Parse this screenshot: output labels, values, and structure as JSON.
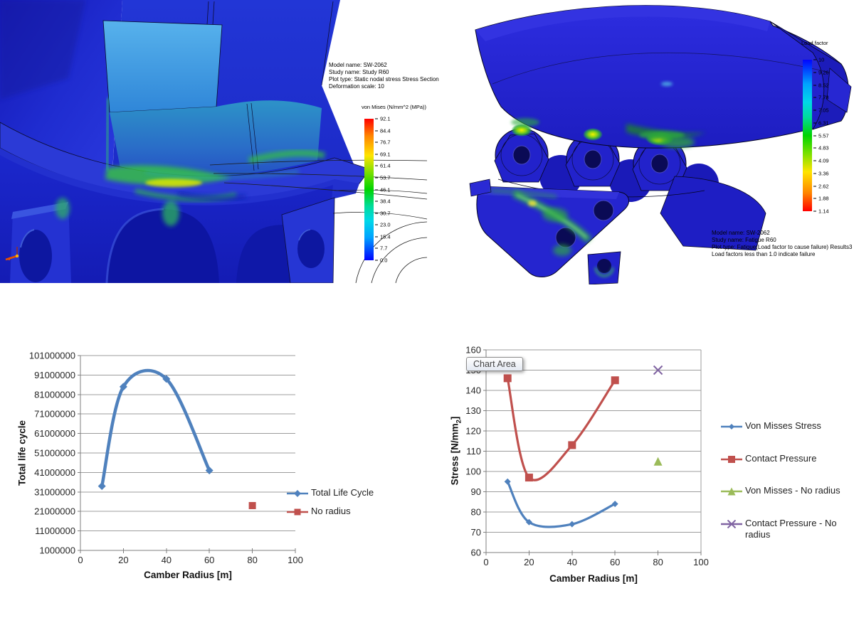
{
  "fea_left": {
    "info_lines": [
      "Model name: SW-2062",
      "Study name: Study R60",
      "Plot type: Static nodal stress Stress Section",
      "Deformation scale: 10"
    ],
    "legend_title": "von Mises (N/mm^2 (MPa))",
    "legend_ticks": [
      "92.1",
      "84.4",
      "76.7",
      "69.1",
      "61.4",
      "53.7",
      "46.1",
      "38.4",
      "30.7",
      "23.0",
      "15.4",
      "7.7",
      "0.0"
    ]
  },
  "fea_right": {
    "info_lines": [
      "Model name: SW-2062",
      "Study name: Fatigue R60",
      "Plot type: Fatigue(Load factor to cause failure) Results3",
      "Load factors less than 1.0 indicate failure"
    ],
    "legend_title": "Load factor",
    "legend_ticks": [
      "10",
      "9.26",
      "8.52",
      "7.78",
      "7.05",
      "6.31",
      "5.57",
      "4.83",
      "4.09",
      "3.36",
      "2.62",
      "1.88",
      "1.14"
    ]
  },
  "colors": {
    "fea_body_blue": "#2222cc",
    "stress_green": "#35c23f",
    "stress_yellow": "#e8e800",
    "excel_blue": "#4F81BD",
    "excel_red": "#C0504D",
    "excel_green": "#9BBB59",
    "excel_purple": "#8064A2"
  },
  "chart_data": [
    {
      "type": "line",
      "title": "",
      "xlabel": "Camber Radius [m]",
      "ylabel": "Total life cycle",
      "xlim": [
        0,
        100
      ],
      "ylim": [
        1000000,
        101000000
      ],
      "x_ticks": [
        "0",
        "20",
        "40",
        "60",
        "80",
        "100"
      ],
      "y_ticks": [
        "101000000",
        "91000000",
        "81000000",
        "71000000",
        "61000000",
        "51000000",
        "41000000",
        "31000000",
        "21000000",
        "11000000",
        "1000000"
      ],
      "grid": "horizontal",
      "legend_position": "right-inside",
      "series": [
        {
          "name": "Total Life Cycle",
          "color": "#4F81BD",
          "marker": "diamond",
          "smooth": true,
          "points": [
            [
              10,
              34000000
            ],
            [
              20,
              85000000
            ],
            [
              40,
              89000000
            ],
            [
              60,
              42000000
            ]
          ]
        },
        {
          "name": "No radius",
          "color": "#C0504D",
          "marker": "square",
          "smooth": false,
          "points": [
            [
              80,
              24000000
            ]
          ]
        }
      ]
    },
    {
      "type": "line",
      "title": "",
      "xlabel": "Camber Radius [m]",
      "ylabel": "Stress [N/mm2]",
      "ylabel_parts": [
        "Stress [N/mm",
        "2",
        "]"
      ],
      "xlim": [
        0,
        100
      ],
      "ylim": [
        60,
        160
      ],
      "x_ticks": [
        "0",
        "20",
        "40",
        "60",
        "80",
        "100"
      ],
      "y_ticks": [
        "160",
        "150",
        "140",
        "130",
        "120",
        "110",
        "100",
        "90",
        "80",
        "70",
        "60"
      ],
      "grid": "horizontal",
      "legend_position": "right-outside",
      "tooltip": "Chart Area",
      "series": [
        {
          "name": "Von Misses Stress",
          "color": "#4F81BD",
          "marker": "diamond",
          "smooth": true,
          "points": [
            [
              10,
              95
            ],
            [
              20,
              75
            ],
            [
              40,
              74
            ],
            [
              60,
              84
            ]
          ]
        },
        {
          "name": "Contact Pressure",
          "color": "#C0504D",
          "marker": "square",
          "smooth": true,
          "points": [
            [
              10,
              146
            ],
            [
              20,
              97
            ],
            [
              40,
              113
            ],
            [
              60,
              145
            ]
          ]
        },
        {
          "name": "Von Misses - No radius",
          "color": "#9BBB59",
          "marker": "triangle",
          "smooth": false,
          "points": [
            [
              80,
              105
            ]
          ]
        },
        {
          "name": "Contact Pressure - No radius",
          "color": "#8064A2",
          "marker": "x",
          "smooth": false,
          "points": [
            [
              80,
              150
            ]
          ]
        }
      ]
    }
  ]
}
